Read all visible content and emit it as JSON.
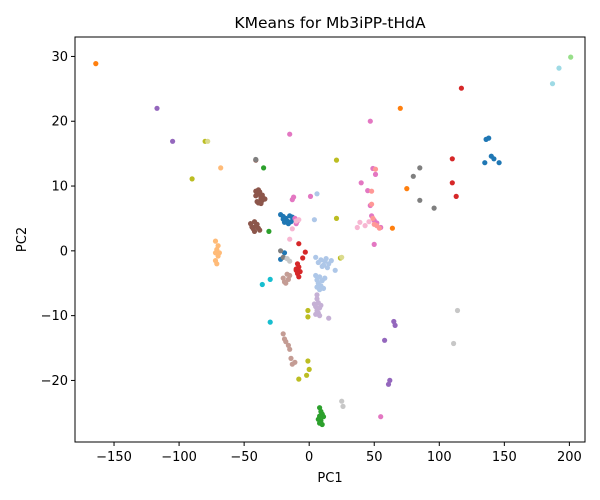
{
  "chart_data": {
    "type": "scatter",
    "title": "KMeans for Mb3iPP-tHdA",
    "xlabel": "PC1",
    "ylabel": "PC2",
    "xlim": [
      -180,
      212
    ],
    "ylim": [
      -29.5,
      33
    ],
    "xticks": [
      -150,
      -100,
      -50,
      0,
      50,
      100,
      150,
      200
    ],
    "yticks": [
      -20,
      -10,
      0,
      10,
      20,
      30
    ],
    "grid": false,
    "legend": "none",
    "series": [
      {
        "color": "#1f77b4",
        "points": [
          [
            -22,
            5.6
          ],
          [
            -20,
            5.3
          ],
          [
            -18,
            5
          ],
          [
            -17,
            4.6
          ],
          [
            -15,
            5.4
          ],
          [
            -13,
            5.2
          ],
          [
            -12,
            4.8
          ],
          [
            -19,
            4.4
          ],
          [
            -16,
            4.2
          ],
          [
            -20,
            4.9
          ],
          [
            -14,
            4.5
          ],
          [
            -22,
            -1.3
          ],
          [
            -19,
            -0.3
          ],
          [
            135,
            13.6
          ],
          [
            136,
            17.2
          ],
          [
            138,
            17.4
          ],
          [
            140,
            14.6
          ],
          [
            142,
            14.2
          ],
          [
            146,
            13.6
          ]
        ]
      },
      {
        "color": "#ff7f0e",
        "points": [
          [
            -164,
            28.9
          ],
          [
            70,
            22
          ],
          [
            75,
            9.6
          ],
          [
            64,
            3.5
          ]
        ]
      },
      {
        "color": "#2ca02c",
        "points": [
          [
            -35,
            12.8
          ],
          [
            -31,
            3
          ],
          [
            8,
            -24.2
          ],
          [
            9,
            -24.8
          ],
          [
            10,
            -25.2
          ],
          [
            11,
            -25.6
          ],
          [
            8,
            -25.5
          ],
          [
            9,
            -26.2
          ],
          [
            7,
            -26
          ],
          [
            10,
            -26.8
          ],
          [
            8,
            -26.6
          ]
        ]
      },
      {
        "color": "#d62728",
        "points": [
          [
            117,
            25.1
          ],
          [
            110,
            14.2
          ],
          [
            110,
            10.5
          ],
          [
            113,
            8.4
          ],
          [
            -8,
            1.1
          ],
          [
            -3,
            -0.2
          ],
          [
            -5,
            -1.1
          ],
          [
            -9,
            -2
          ],
          [
            -8,
            -2.5
          ],
          [
            -10,
            -2.8
          ],
          [
            -7,
            -3.2
          ],
          [
            -9,
            -3.5
          ],
          [
            -8,
            -4
          ],
          [
            -10,
            -3
          ]
        ]
      },
      {
        "color": "#9467bd",
        "points": [
          [
            -117,
            22
          ],
          [
            -105,
            16.9
          ],
          [
            65,
            -10.9
          ],
          [
            66,
            -11.5
          ],
          [
            58,
            -13.8
          ],
          [
            62,
            -20
          ],
          [
            61,
            -20.6
          ]
        ]
      },
      {
        "color": "#8c564b",
        "points": [
          [
            -45,
            4.2
          ],
          [
            -44,
            3.7
          ],
          [
            -43,
            3.4
          ],
          [
            -42,
            3
          ],
          [
            -41,
            3.8
          ],
          [
            -40,
            4.1
          ],
          [
            -39,
            3.5
          ],
          [
            -38,
            3.2
          ],
          [
            -42,
            4.5
          ],
          [
            -41,
            8.5
          ],
          [
            -40,
            9
          ],
          [
            -39,
            9.4
          ],
          [
            -38,
            8.7
          ],
          [
            -37,
            8
          ],
          [
            -36,
            7.8
          ],
          [
            -34,
            8
          ],
          [
            -40,
            7.6
          ],
          [
            -41,
            9.2
          ],
          [
            -38,
            9.1
          ],
          [
            -37,
            8.3
          ],
          [
            -36,
            8.6
          ],
          [
            -35,
            8.1
          ],
          [
            -41,
            14
          ],
          [
            -39,
            7.4
          ],
          [
            -37,
            7.3
          ]
        ]
      },
      {
        "color": "#e377c2",
        "points": [
          [
            -15,
            18
          ],
          [
            -12,
            8.3
          ],
          [
            -13,
            7.9
          ],
          [
            -11,
            5
          ],
          [
            -9,
            4.6
          ],
          [
            -10,
            4.2
          ],
          [
            1,
            8.4
          ],
          [
            47,
            20
          ],
          [
            49,
            12.7
          ],
          [
            47,
            7
          ],
          [
            48,
            5.4
          ],
          [
            50,
            4.7
          ],
          [
            52,
            4.3
          ],
          [
            51,
            11.8
          ],
          [
            55,
            3.6
          ],
          [
            40,
            10.5
          ],
          [
            45,
            9.3
          ],
          [
            50,
            1
          ],
          [
            55,
            -25.6
          ]
        ]
      },
      {
        "color": "#7f7f7f",
        "points": [
          [
            -41,
            14.1
          ],
          [
            80,
            11.5
          ],
          [
            85,
            12.8
          ],
          [
            85,
            7.8
          ],
          [
            96,
            6.6
          ],
          [
            -22,
            0
          ],
          [
            -20,
            -1
          ]
        ]
      },
      {
        "color": "#bcbd22",
        "points": [
          [
            -80,
            16.9
          ],
          [
            -90,
            11.1
          ],
          [
            21,
            14
          ],
          [
            21,
            5
          ],
          [
            24,
            -1.1
          ],
          [
            -1,
            -9.2
          ],
          [
            -1,
            -10.2
          ],
          [
            -1,
            -17
          ],
          [
            0,
            -18.3
          ],
          [
            -2,
            -19.2
          ],
          [
            -8,
            -19.8
          ]
        ]
      },
      {
        "color": "#17becf",
        "points": [
          [
            -36,
            -5.2
          ],
          [
            -30,
            -4.4
          ],
          [
            -30,
            -11
          ]
        ]
      },
      {
        "color": "#aec7e8",
        "points": [
          [
            5,
            -3.8
          ],
          [
            6,
            -4.5
          ],
          [
            7,
            -5
          ],
          [
            8,
            -4
          ],
          [
            9,
            -5.4
          ],
          [
            10,
            -4.6
          ],
          [
            11,
            -5.8
          ],
          [
            12,
            -4.2
          ],
          [
            6,
            -5.6
          ],
          [
            8,
            -6
          ],
          [
            10,
            -2.4
          ],
          [
            12,
            -1.6
          ],
          [
            13,
            -1.2
          ],
          [
            15,
            -2
          ],
          [
            17,
            -1.5
          ],
          [
            9,
            -1.4
          ],
          [
            11,
            -2.2
          ],
          [
            14,
            -2.6
          ],
          [
            20,
            -3
          ],
          [
            4,
            4.8
          ],
          [
            6,
            8.8
          ],
          [
            7,
            -1.8
          ],
          [
            5,
            -1
          ]
        ]
      },
      {
        "color": "#ffbb78",
        "points": [
          [
            -68,
            12.8
          ],
          [
            -72,
            1.5
          ],
          [
            -70,
            0.8
          ],
          [
            -71,
            0.2
          ],
          [
            -72,
            -0.3
          ],
          [
            -70,
            -0.8
          ],
          [
            -72,
            -1.5
          ],
          [
            -71,
            -2
          ],
          [
            -69,
            -0.3
          ]
        ]
      },
      {
        "color": "#98df8a",
        "points": [
          [
            201,
            29.9
          ]
        ]
      },
      {
        "color": "#ff9896",
        "points": [
          [
            48,
            9.2
          ],
          [
            48,
            7.2
          ],
          [
            49,
            5
          ],
          [
            50,
            4.1
          ],
          [
            52,
            3.9
          ],
          [
            54,
            3.5
          ],
          [
            51,
            12.6
          ]
        ]
      },
      {
        "color": "#c5b0d5",
        "points": [
          [
            4,
            -8.2
          ],
          [
            5,
            -8.6
          ],
          [
            6,
            -9.2
          ],
          [
            7,
            -8
          ],
          [
            8,
            -8.8
          ],
          [
            6,
            -7.4
          ],
          [
            7,
            -9.6
          ],
          [
            5,
            -9.8
          ],
          [
            9,
            -8.4
          ],
          [
            6,
            -6.8
          ],
          [
            15,
            -10.4
          ],
          [
            8,
            -10
          ]
        ]
      },
      {
        "color": "#c49c94",
        "points": [
          [
            -20,
            -4.2
          ],
          [
            -19,
            -4.8
          ],
          [
            -17,
            -3.6
          ],
          [
            -16,
            -4.4
          ],
          [
            -15,
            -3.8
          ],
          [
            -18,
            -5
          ],
          [
            -20,
            -12.8
          ],
          [
            -19,
            -13.6
          ],
          [
            -18,
            -14
          ],
          [
            -16,
            -14.6
          ],
          [
            -15,
            -15.2
          ],
          [
            -14,
            -16.6
          ],
          [
            -13,
            -17.5
          ],
          [
            -11,
            -17.2
          ]
        ]
      },
      {
        "color": "#f7b6d2",
        "points": [
          [
            -13,
            3.4
          ],
          [
            -10,
            4.6
          ],
          [
            -8,
            4.8
          ],
          [
            37,
            3.6
          ],
          [
            39,
            4.4
          ],
          [
            43,
            3.9
          ],
          [
            46,
            4.5
          ],
          [
            -15,
            1.8
          ]
        ]
      },
      {
        "color": "#c7c7c7",
        "points": [
          [
            114,
            -9.2
          ],
          [
            111,
            -14.3
          ],
          [
            25,
            -23.2
          ],
          [
            26,
            -24
          ],
          [
            -17,
            -1.2
          ],
          [
            -15,
            -1.6
          ]
        ]
      },
      {
        "color": "#dbdb8d",
        "points": [
          [
            -78,
            16.9
          ],
          [
            25,
            -1
          ]
        ]
      },
      {
        "color": "#9edae5",
        "points": [
          [
            192,
            28.2
          ],
          [
            187,
            25.8
          ]
        ]
      }
    ]
  }
}
